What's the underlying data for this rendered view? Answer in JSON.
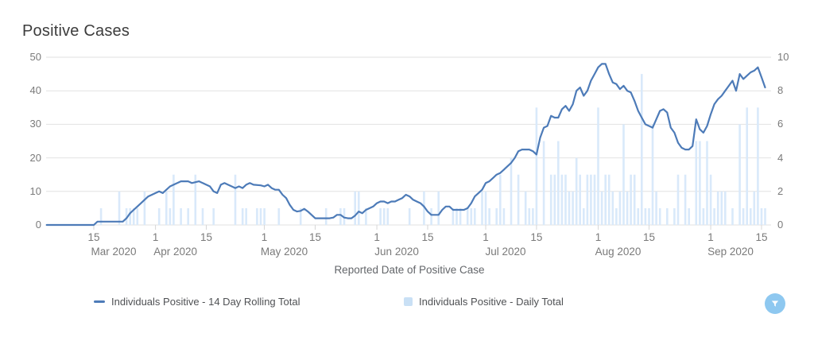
{
  "title": "Positive Cases",
  "chart_data": {
    "type": "line",
    "title": "Positive Cases",
    "xlabel": "Reported Date of Positive Case",
    "grid": true,
    "legend_position": "bottom",
    "x_unit": "days since 2020-03-01 (axis shows dates Mar 2020 - Sep 2020)",
    "left_axis": {
      "ticks": [
        0,
        10,
        20,
        30,
        40,
        50
      ],
      "range": [
        0,
        50
      ]
    },
    "right_axis": {
      "ticks": [
        0,
        2,
        4,
        6,
        8,
        10
      ],
      "range": [
        0,
        10
      ]
    },
    "x_ticks": [
      {
        "d": 14,
        "label": "15",
        "month": "Mar 2020"
      },
      {
        "d": 31,
        "label": "1",
        "month": "Apr 2020"
      },
      {
        "d": 45,
        "label": "15",
        "month": ""
      },
      {
        "d": 61,
        "label": "1",
        "month": "May 2020"
      },
      {
        "d": 75,
        "label": "15",
        "month": ""
      },
      {
        "d": 92,
        "label": "1",
        "month": "Jun 2020"
      },
      {
        "d": 106,
        "label": "15",
        "month": ""
      },
      {
        "d": 122,
        "label": "1",
        "month": "Jul 2020"
      },
      {
        "d": 136,
        "label": "15",
        "month": ""
      },
      {
        "d": 153,
        "label": "1",
        "month": "Aug 2020"
      },
      {
        "d": 167,
        "label": "15",
        "month": ""
      },
      {
        "d": 184,
        "label": "1",
        "month": "Sep 2020"
      },
      {
        "d": 198,
        "label": "15",
        "month": ""
      }
    ],
    "series": [
      {
        "name": "Individuals Positive - 14 Day Rolling Total",
        "type": "line",
        "axis": "left",
        "color": "#4d7bb8",
        "points": [
          [
            1,
            0
          ],
          [
            14,
            0
          ],
          [
            15,
            1
          ],
          [
            22,
            1
          ],
          [
            23,
            2
          ],
          [
            24,
            3.5
          ],
          [
            25,
            4.5
          ],
          [
            26,
            5.5
          ],
          [
            27,
            6.5
          ],
          [
            28,
            7.5
          ],
          [
            29,
            8.5
          ],
          [
            30,
            9
          ],
          [
            31,
            9.5
          ],
          [
            32,
            10
          ],
          [
            33,
            9.5
          ],
          [
            34,
            10.5
          ],
          [
            35,
            11.5
          ],
          [
            36,
            12
          ],
          [
            37,
            12.5
          ],
          [
            38,
            13
          ],
          [
            40,
            13
          ],
          [
            41,
            12.5
          ],
          [
            43,
            13
          ],
          [
            44,
            12.5
          ],
          [
            45,
            12
          ],
          [
            46,
            11.5
          ],
          [
            47,
            10
          ],
          [
            48,
            9.5
          ],
          [
            49,
            12
          ],
          [
            50,
            12.5
          ],
          [
            51,
            12
          ],
          [
            52,
            11.5
          ],
          [
            53,
            11
          ],
          [
            54,
            11.5
          ],
          [
            55,
            11
          ],
          [
            56,
            12
          ],
          [
            57,
            12.5
          ],
          [
            58,
            12
          ],
          [
            60,
            11.8
          ],
          [
            61,
            11.5
          ],
          [
            62,
            12
          ],
          [
            63,
            11
          ],
          [
            64,
            10.5
          ],
          [
            65,
            10.5
          ],
          [
            66,
            9
          ],
          [
            67,
            8
          ],
          [
            68,
            6
          ],
          [
            69,
            4.5
          ],
          [
            70,
            4
          ],
          [
            71,
            4.2
          ],
          [
            72,
            4.8
          ],
          [
            73,
            4
          ],
          [
            74,
            3
          ],
          [
            75,
            2
          ],
          [
            79,
            2
          ],
          [
            80,
            2.2
          ],
          [
            81,
            3
          ],
          [
            82,
            3
          ],
          [
            83,
            2.2
          ],
          [
            84,
            2
          ],
          [
            85,
            2
          ],
          [
            86,
            2.8
          ],
          [
            87,
            4
          ],
          [
            88,
            3.5
          ],
          [
            89,
            4.5
          ],
          [
            90,
            5
          ],
          [
            91,
            5.5
          ],
          [
            92,
            6.5
          ],
          [
            93,
            7
          ],
          [
            94,
            7
          ],
          [
            95,
            6.5
          ],
          [
            96,
            7
          ],
          [
            97,
            7
          ],
          [
            98,
            7.5
          ],
          [
            99,
            8
          ],
          [
            100,
            9
          ],
          [
            101,
            8.5
          ],
          [
            102,
            7.5
          ],
          [
            103,
            7
          ],
          [
            104,
            6.5
          ],
          [
            105,
            5.5
          ],
          [
            106,
            4
          ],
          [
            107,
            3
          ],
          [
            109,
            3
          ],
          [
            110,
            4.5
          ],
          [
            111,
            5.5
          ],
          [
            112,
            5.5
          ],
          [
            113,
            4.5
          ],
          [
            116,
            4.5
          ],
          [
            117,
            5
          ],
          [
            118,
            6.5
          ],
          [
            119,
            8.5
          ],
          [
            120,
            9.5
          ],
          [
            121,
            10.5
          ],
          [
            122,
            12.5
          ],
          [
            123,
            13
          ],
          [
            124,
            14
          ],
          [
            125,
            15
          ],
          [
            126,
            15.5
          ],
          [
            127,
            16.5
          ],
          [
            128,
            17.5
          ],
          [
            129,
            18.5
          ],
          [
            130,
            20
          ],
          [
            131,
            22
          ],
          [
            132,
            22.5
          ],
          [
            134,
            22.5
          ],
          [
            135,
            22
          ],
          [
            136,
            21
          ],
          [
            137,
            26
          ],
          [
            138,
            29
          ],
          [
            139,
            29.5
          ],
          [
            140,
            32.5
          ],
          [
            141,
            32
          ],
          [
            142,
            32
          ],
          [
            143,
            34.5
          ],
          [
            144,
            35.5
          ],
          [
            145,
            34
          ],
          [
            146,
            36
          ],
          [
            147,
            40
          ],
          [
            148,
            41
          ],
          [
            149,
            38.5
          ],
          [
            150,
            40
          ],
          [
            151,
            43
          ],
          [
            152,
            45
          ],
          [
            153,
            47
          ],
          [
            154,
            48
          ],
          [
            155,
            48
          ],
          [
            156,
            45
          ],
          [
            157,
            42.5
          ],
          [
            158,
            42
          ],
          [
            159,
            40.5
          ],
          [
            160,
            41.5
          ],
          [
            161,
            40
          ],
          [
            162,
            39.5
          ],
          [
            163,
            37
          ],
          [
            164,
            34
          ],
          [
            165,
            32
          ],
          [
            166,
            30
          ],
          [
            167,
            29.5
          ],
          [
            168,
            29
          ],
          [
            169,
            31.5
          ],
          [
            170,
            34
          ],
          [
            171,
            34.5
          ],
          [
            172,
            33.5
          ],
          [
            173,
            29
          ],
          [
            174,
            27.5
          ],
          [
            175,
            24.5
          ],
          [
            176,
            23
          ],
          [
            177,
            22.5
          ],
          [
            178,
            22.5
          ],
          [
            179,
            23.5
          ],
          [
            180,
            31.5
          ],
          [
            181,
            28.5
          ],
          [
            182,
            27.5
          ],
          [
            183,
            29.5
          ],
          [
            184,
            33
          ],
          [
            185,
            36
          ],
          [
            186,
            37.5
          ],
          [
            187,
            38.5
          ],
          [
            188,
            40
          ],
          [
            189,
            41.5
          ],
          [
            190,
            43
          ],
          [
            191,
            40
          ],
          [
            192,
            45
          ],
          [
            193,
            43.5
          ],
          [
            194,
            44.5
          ],
          [
            195,
            45.5
          ],
          [
            196,
            46
          ],
          [
            197,
            47
          ],
          [
            198,
            44
          ],
          [
            199,
            41
          ]
        ]
      },
      {
        "name": "Individuals Positive - Daily Total",
        "type": "bar",
        "axis": "right",
        "color": "#c9e0f5",
        "fill": "#d9e9fa",
        "points": [
          [
            16,
            1
          ],
          [
            21,
            2
          ],
          [
            23,
            1
          ],
          [
            24,
            1
          ],
          [
            25,
            1
          ],
          [
            26,
            1
          ],
          [
            28,
            2
          ],
          [
            32,
            1
          ],
          [
            34,
            2
          ],
          [
            35,
            1
          ],
          [
            36,
            3
          ],
          [
            38,
            1
          ],
          [
            40,
            1
          ],
          [
            42,
            3
          ],
          [
            44,
            1
          ],
          [
            47,
            1
          ],
          [
            53,
            3
          ],
          [
            55,
            1
          ],
          [
            56,
            1
          ],
          [
            59,
            1
          ],
          [
            60,
            1
          ],
          [
            61,
            1
          ],
          [
            65,
            1
          ],
          [
            71,
            1
          ],
          [
            78,
            1
          ],
          [
            82,
            1
          ],
          [
            83,
            1
          ],
          [
            86,
            2
          ],
          [
            87,
            2
          ],
          [
            89,
            1
          ],
          [
            93,
            1
          ],
          [
            94,
            1
          ],
          [
            95,
            1
          ],
          [
            101,
            1
          ],
          [
            105,
            2
          ],
          [
            107,
            1
          ],
          [
            109,
            2
          ],
          [
            113,
            1
          ],
          [
            114,
            1
          ],
          [
            115,
            1
          ],
          [
            117,
            1
          ],
          [
            118,
            1
          ],
          [
            119,
            1
          ],
          [
            121,
            2
          ],
          [
            122,
            2
          ],
          [
            123,
            1
          ],
          [
            125,
            1
          ],
          [
            126,
            3
          ],
          [
            127,
            1
          ],
          [
            129,
            4
          ],
          [
            131,
            3
          ],
          [
            133,
            2
          ],
          [
            134,
            1
          ],
          [
            135,
            1
          ],
          [
            136,
            7
          ],
          [
            138,
            5
          ],
          [
            140,
            3
          ],
          [
            141,
            3
          ],
          [
            142,
            5
          ],
          [
            143,
            3
          ],
          [
            144,
            3
          ],
          [
            145,
            2
          ],
          [
            146,
            2
          ],
          [
            147,
            4
          ],
          [
            148,
            3
          ],
          [
            149,
            1
          ],
          [
            150,
            3
          ],
          [
            151,
            3
          ],
          [
            152,
            3
          ],
          [
            153,
            7
          ],
          [
            154,
            2
          ],
          [
            155,
            3
          ],
          [
            156,
            3
          ],
          [
            157,
            2
          ],
          [
            158,
            1
          ],
          [
            159,
            2
          ],
          [
            160,
            6
          ],
          [
            161,
            2
          ],
          [
            162,
            3
          ],
          [
            163,
            3
          ],
          [
            164,
            1
          ],
          [
            165,
            9
          ],
          [
            166,
            1
          ],
          [
            167,
            1
          ],
          [
            168,
            6
          ],
          [
            169,
            2
          ],
          [
            170,
            1
          ],
          [
            172,
            1
          ],
          [
            174,
            1
          ],
          [
            175,
            3
          ],
          [
            177,
            3
          ],
          [
            178,
            1
          ],
          [
            180,
            5
          ],
          [
            181,
            5
          ],
          [
            182,
            1
          ],
          [
            183,
            5
          ],
          [
            184,
            3
          ],
          [
            185,
            1
          ],
          [
            186,
            2
          ],
          [
            187,
            2
          ],
          [
            188,
            2
          ],
          [
            190,
            1
          ],
          [
            192,
            6
          ],
          [
            193,
            1
          ],
          [
            194,
            7
          ],
          [
            195,
            1
          ],
          [
            196,
            2
          ],
          [
            197,
            7
          ],
          [
            198,
            1
          ],
          [
            199,
            1
          ]
        ]
      }
    ]
  },
  "legend": {
    "items": [
      {
        "label": "Individuals Positive - 14 Day Rolling Total",
        "marker": "line-marker"
      },
      {
        "label": "Individuals Positive - Daily Total",
        "marker": "square-marker"
      }
    ]
  },
  "filter_button": {
    "icon": "filter-funnel-icon",
    "color": "#8ec8f0"
  }
}
